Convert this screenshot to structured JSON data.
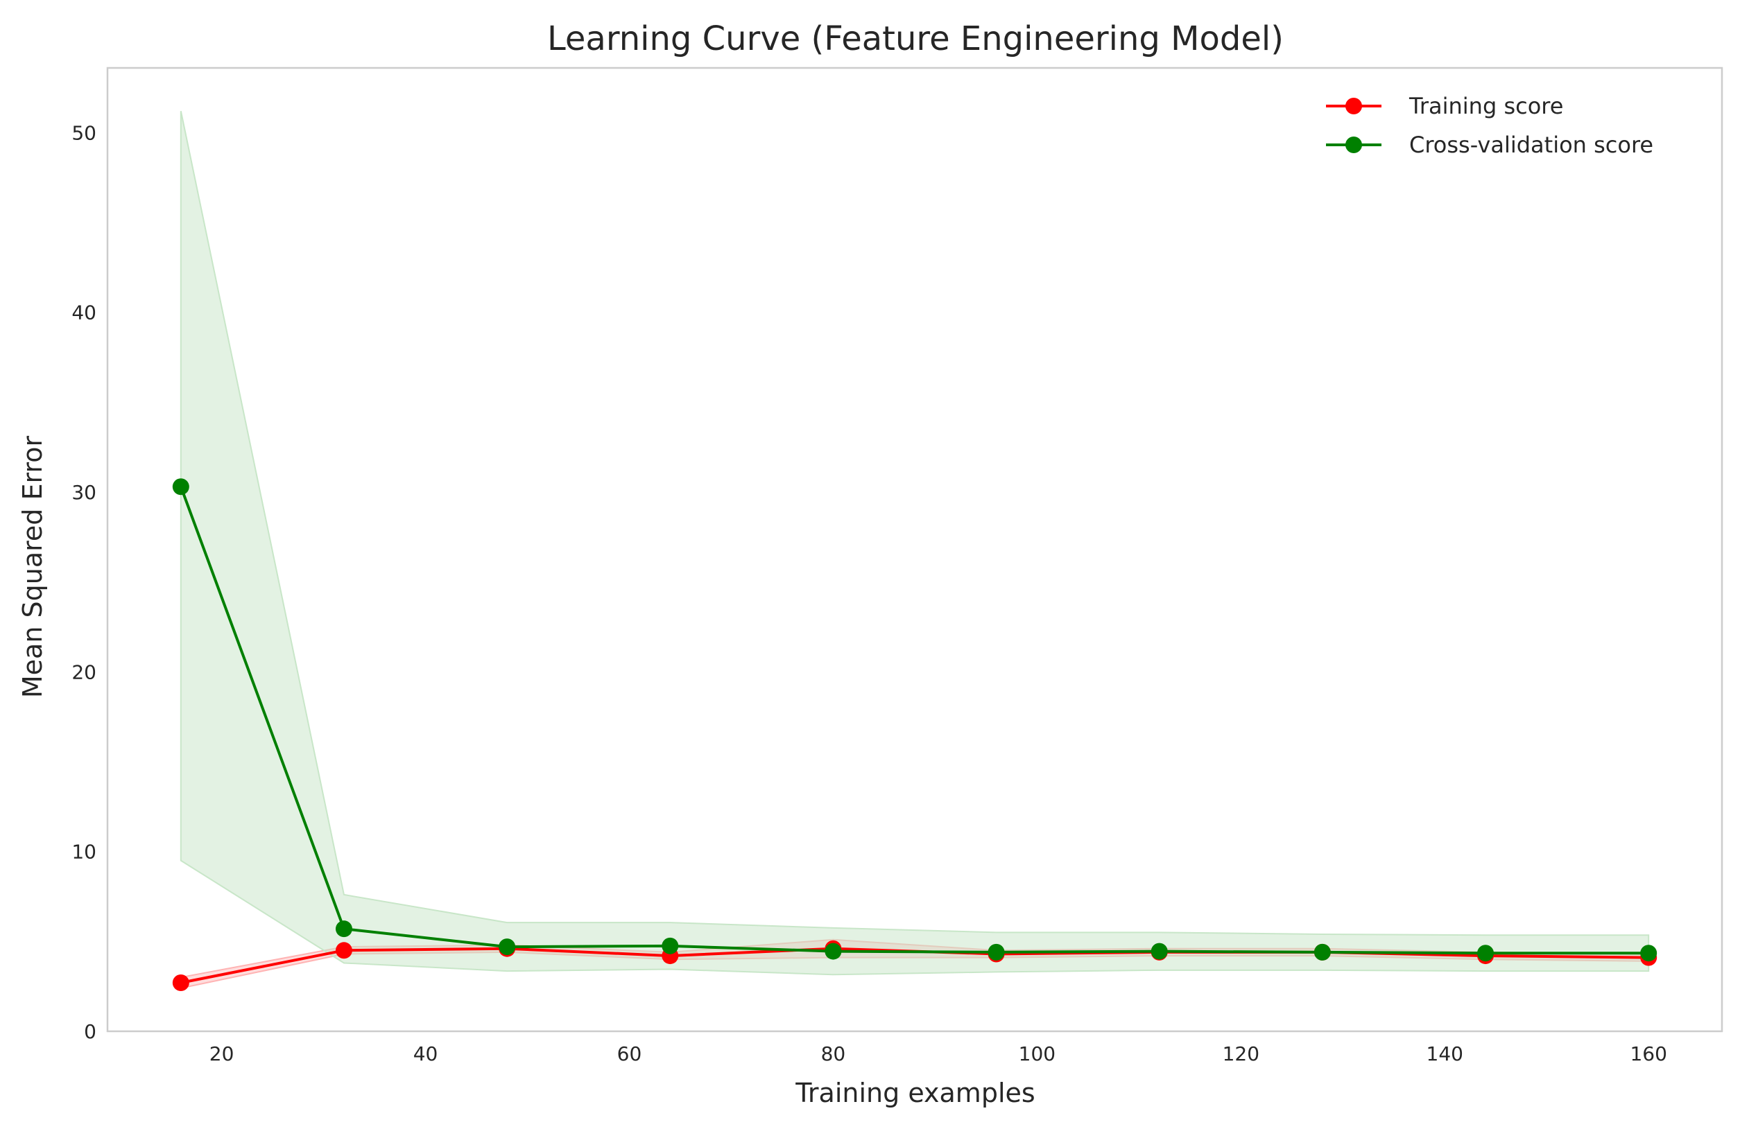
{
  "chart_data": {
    "type": "line",
    "title": "Learning Curve (Feature Engineering Model)",
    "xlabel": "Training examples",
    "ylabel": "Mean Squared Error",
    "xlim": [
      8.8,
      167.2
    ],
    "ylim": [
      0,
      53.6
    ],
    "xticks": [
      20,
      40,
      60,
      80,
      100,
      120,
      140,
      160
    ],
    "yticks": [
      0,
      10,
      20,
      30,
      40,
      50
    ],
    "grid": false,
    "legend": "top-right",
    "x": [
      16,
      32,
      48,
      64,
      80,
      96,
      112,
      128,
      144,
      160
    ],
    "series": [
      {
        "name": "Training score",
        "color": "#ff0000",
        "band_color": "#ffb3b3",
        "values": [
          2.7,
          4.5,
          4.6,
          4.2,
          4.6,
          4.3,
          4.4,
          4.4,
          4.2,
          4.1
        ],
        "band_lower": [
          2.4,
          4.3,
          4.4,
          4.0,
          4.1,
          4.1,
          4.2,
          4.2,
          4.0,
          3.9
        ],
        "band_upper": [
          3.0,
          4.7,
          4.8,
          4.4,
          5.1,
          4.5,
          4.6,
          4.6,
          4.4,
          4.3
        ]
      },
      {
        "name": "Cross-validation score",
        "color": "#008000",
        "band_color": "#c8e6c8",
        "values": [
          30.3,
          5.7,
          4.7,
          4.75,
          4.45,
          4.4,
          4.45,
          4.4,
          4.35,
          4.35
        ],
        "band_lower": [
          9.5,
          3.8,
          3.35,
          3.45,
          3.15,
          3.3,
          3.4,
          3.4,
          3.35,
          3.35
        ],
        "band_upper": [
          51.2,
          7.6,
          6.05,
          6.05,
          5.75,
          5.5,
          5.5,
          5.4,
          5.35,
          5.35
        ]
      }
    ]
  }
}
